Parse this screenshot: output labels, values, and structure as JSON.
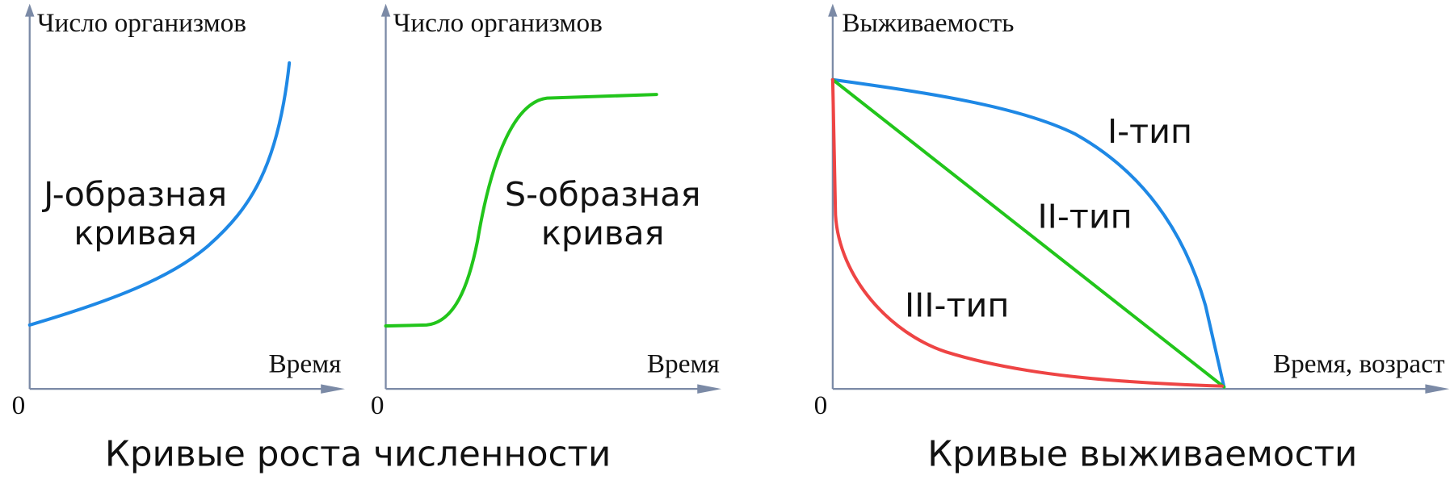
{
  "growth": {
    "caption": "Кривые роста численности",
    "charts": [
      {
        "y_label": "Число организмов",
        "x_label": "Время",
        "origin": "0",
        "curve_label": [
          "J-образная",
          "кривая"
        ]
      },
      {
        "y_label": "Число организмов",
        "x_label": "Время",
        "origin": "0",
        "curve_label": [
          "S-образная",
          "кривая"
        ]
      }
    ]
  },
  "survival": {
    "caption": "Кривые выживаемости",
    "y_label": "Выживаемость",
    "x_label": "Время, возраст",
    "origin": "0",
    "types": [
      "I-тип",
      "II-тип",
      "III-тип"
    ]
  }
}
